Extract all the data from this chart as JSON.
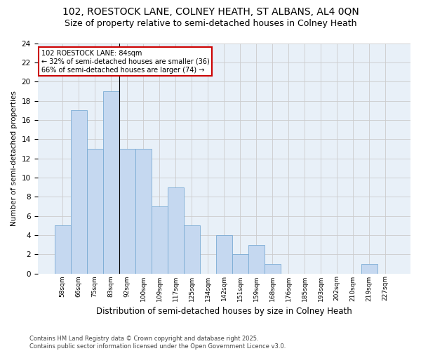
{
  "title_line1": "102, ROESTOCK LANE, COLNEY HEATH, ST ALBANS, AL4 0QN",
  "title_line2": "Size of property relative to semi-detached houses in Colney Heath",
  "xlabel": "Distribution of semi-detached houses by size in Colney Heath",
  "ylabel": "Number of semi-detached properties",
  "categories": [
    "58sqm",
    "66sqm",
    "75sqm",
    "83sqm",
    "92sqm",
    "100sqm",
    "109sqm",
    "117sqm",
    "125sqm",
    "134sqm",
    "142sqm",
    "151sqm",
    "159sqm",
    "168sqm",
    "176sqm",
    "185sqm",
    "193sqm",
    "202sqm",
    "210sqm",
    "219sqm",
    "227sqm"
  ],
  "values": [
    5,
    17,
    13,
    19,
    13,
    13,
    7,
    9,
    5,
    0,
    4,
    2,
    3,
    1,
    0,
    0,
    0,
    0,
    0,
    1,
    0
  ],
  "bar_color": "#c5d8f0",
  "bar_edge_color": "#7aabd4",
  "annotation_title": "102 ROESTOCK LANE: 84sqm",
  "annotation_line2": "← 32% of semi-detached houses are smaller (36)",
  "annotation_line3": "66% of semi-detached houses are larger (74) →",
  "annotation_box_color": "#ffffff",
  "annotation_box_edge": "#cc0000",
  "ylim": [
    0,
    24
  ],
  "yticks": [
    0,
    2,
    4,
    6,
    8,
    10,
    12,
    14,
    16,
    18,
    20,
    22,
    24
  ],
  "grid_color": "#cccccc",
  "background_color": "#ffffff",
  "plot_bg_color": "#e8f0f8",
  "footer": "Contains HM Land Registry data © Crown copyright and database right 2025.\nContains public sector information licensed under the Open Government Licence v3.0.",
  "vline_x": 3.5,
  "title_fontsize": 10,
  "subtitle_fontsize": 9
}
